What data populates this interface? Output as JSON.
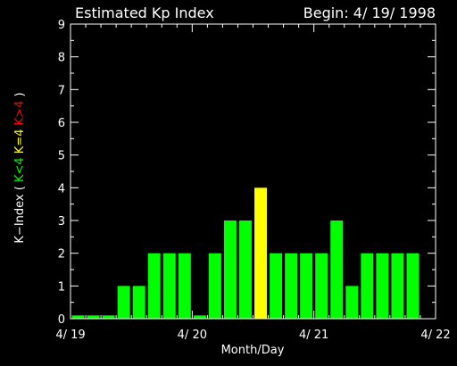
{
  "chart_data": {
    "type": "bar",
    "title": "Estimated Kp Index",
    "begin_label": "Begin: 4/ 19/ 1998",
    "xlabel": "Month/Day",
    "ylabel": {
      "prefix": "K−Index ( ",
      "low": "K<4",
      "mid": "K=4",
      "high": "K>4",
      "suffix": " )"
    },
    "x_ticks": [
      "4/ 19",
      "4/ 20",
      "4/ 21",
      "4/ 22"
    ],
    "ylim": [
      0,
      9
    ],
    "y_ticks": [
      0,
      1,
      2,
      3,
      4,
      5,
      6,
      7,
      8,
      9
    ],
    "bars_per_day": 8,
    "days": 3,
    "values": [
      0.1,
      0.1,
      0.1,
      1,
      1,
      2,
      2,
      2,
      0.1,
      2,
      3,
      3,
      4,
      2,
      2,
      2,
      2,
      3,
      1,
      2,
      2,
      2,
      2
    ],
    "colors": {
      "low": "#00ff00",
      "mid": "#ffff00",
      "high": "#ff0000",
      "axis": "#ffffff",
      "background": "#000000"
    }
  }
}
